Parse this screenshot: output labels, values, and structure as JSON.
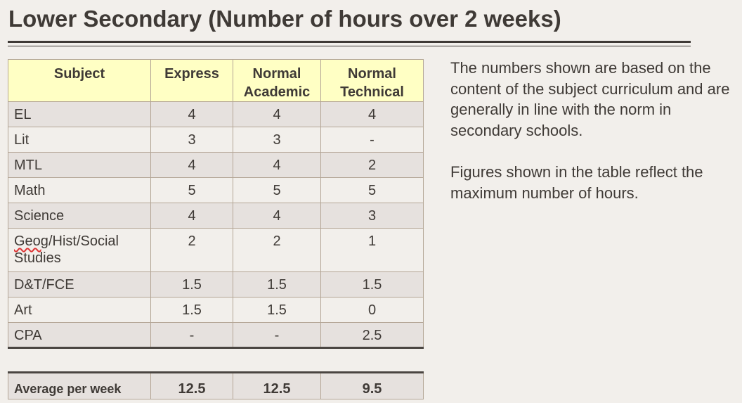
{
  "title": "Lower Secondary (Number of hours over 2 weeks)",
  "table": {
    "headers": [
      "Subject",
      "Express",
      "Normal Academic",
      "Normal Technical"
    ],
    "rows": [
      {
        "subject": "EL",
        "express": "4",
        "normal_academic": "4",
        "normal_technical": "4"
      },
      {
        "subject": "Lit",
        "express": "3",
        "normal_academic": "3",
        "normal_technical": "-"
      },
      {
        "subject": "MTL",
        "express": "4",
        "normal_academic": "4",
        "normal_technical": "2"
      },
      {
        "subject": "Math",
        "express": "5",
        "normal_academic": "5",
        "normal_technical": "5"
      },
      {
        "subject": "Science",
        "express": "4",
        "normal_academic": "4",
        "normal_technical": "3"
      },
      {
        "subject_part1": "Geog",
        "subject_part2": "/Hist/Social",
        "subject_line2": "Studies",
        "express": "2",
        "normal_academic": "2",
        "normal_technical": "1"
      },
      {
        "subject": "D&T/FCE",
        "express": "1.5",
        "normal_academic": "1.5",
        "normal_technical": "1.5"
      },
      {
        "subject": "Art",
        "express": "1.5",
        "normal_academic": "1.5",
        "normal_technical": "0"
      },
      {
        "subject": "CPA",
        "express": "-",
        "normal_academic": "-",
        "normal_technical": "2.5"
      }
    ],
    "average": {
      "label": "Average per week",
      "express": "12.5",
      "normal_academic": "12.5",
      "normal_technical": "9.5"
    }
  },
  "notes": [
    "The numbers shown are based on the content of the subject curriculum and are generally in line with the norm in secondary schools.",
    "Figures shown in the table reflect the maximum number of hours."
  ],
  "colors": {
    "header_bg": "#ffffc4",
    "row_dark": "#e6e1de",
    "row_light": "#f2efeb",
    "text": "#3f3a36"
  }
}
